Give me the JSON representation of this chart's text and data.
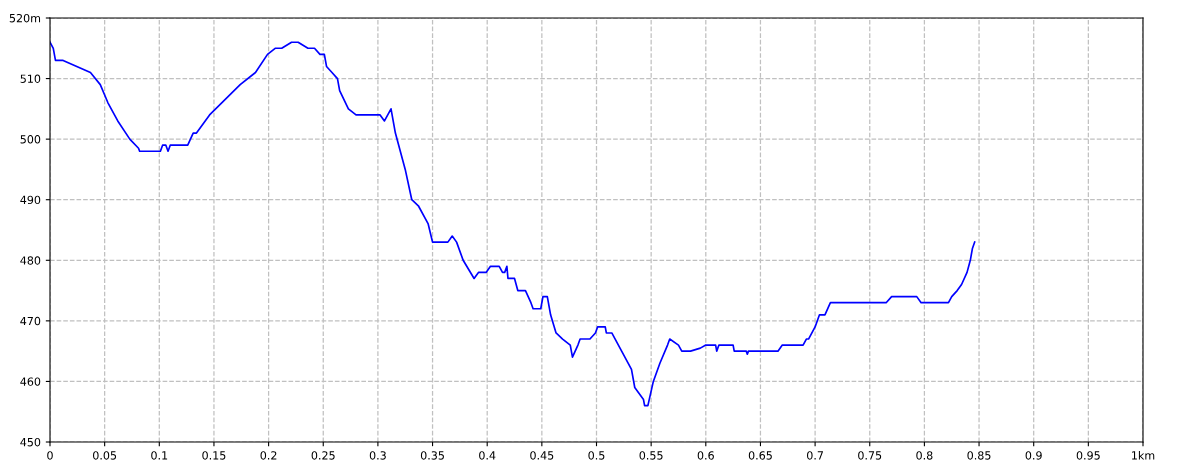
{
  "chart_data": {
    "type": "line",
    "xlim": [
      0,
      1
    ],
    "ylim": [
      450,
      520
    ],
    "xticks": [
      0,
      0.05,
      0.1,
      0.15,
      0.2,
      0.25,
      0.3,
      0.35,
      0.4,
      0.45,
      0.5,
      0.55,
      0.6,
      0.65,
      0.7,
      0.75,
      0.8,
      0.85,
      0.9,
      0.95,
      {
        "value": 1,
        "label": "1km"
      }
    ],
    "yticks": [
      450,
      460,
      470,
      480,
      490,
      500,
      510,
      {
        "value": 520,
        "label": "520m"
      }
    ],
    "grid": true,
    "marker": "none",
    "line_style": "solid",
    "series": [
      {
        "color": "#0000ff",
        "x": [
          0,
          0.003,
          0.005,
          0.012,
          0.037,
          0.046,
          0.053,
          0.062,
          0.073,
          0.081,
          0.082,
          0.101,
          0.103,
          0.106,
          0.108,
          0.11,
          0.126,
          0.131,
          0.134,
          0.146,
          0.174,
          0.188,
          0.199,
          0.206,
          0.212,
          0.221,
          0.227,
          0.236,
          0.242,
          0.247,
          0.251,
          0.253,
          0.258,
          0.263,
          0.265,
          0.273,
          0.28,
          0.302,
          0.306,
          0.312,
          0.316,
          0.325,
          0.331,
          0.337,
          0.346,
          0.35,
          0.364,
          0.368,
          0.372,
          0.378,
          0.388,
          0.392,
          0.395,
          0.399,
          0.403,
          0.411,
          0.414,
          0.416,
          0.418,
          0.419,
          0.425,
          0.428,
          0.435,
          0.44,
          0.442,
          0.449,
          0.451,
          0.455,
          0.458,
          0.463,
          0.469,
          0.476,
          0.478,
          0.483,
          0.485,
          0.494,
          0.499,
          0.501,
          0.508,
          0.509,
          0.514,
          0.523,
          0.532,
          0.535,
          0.543,
          0.544,
          0.547,
          0.552,
          0.558,
          0.565,
          0.567,
          0.575,
          0.578,
          0.586,
          0.595,
          0.6,
          0.609,
          0.61,
          0.612,
          0.625,
          0.626,
          0.637,
          0.638,
          0.639,
          0.666,
          0.67,
          0.689,
          0.692,
          0.694,
          0.7,
          0.704,
          0.709,
          0.714,
          0.765,
          0.77,
          0.793,
          0.797,
          0.822,
          0.825,
          0.83,
          0.834,
          0.839,
          0.842,
          0.844,
          0.846
        ],
        "values": [
          516,
          515,
          513,
          513,
          511,
          509,
          506,
          503,
          500,
          498.5,
          498,
          498,
          499,
          499,
          498,
          499,
          499,
          501,
          501,
          504,
          509,
          511,
          514,
          515,
          515,
          516,
          516,
          515,
          515,
          514,
          514,
          512,
          511,
          510,
          508,
          505,
          504,
          504,
          503,
          505,
          501,
          495,
          490,
          489,
          486,
          483,
          483,
          484,
          483,
          480,
          477,
          478,
          478,
          478,
          479,
          479,
          478,
          478,
          479,
          477,
          477,
          475,
          475,
          473,
          472,
          472,
          474,
          474,
          471,
          468,
          467,
          466,
          464,
          466,
          467,
          467,
          468,
          469,
          469,
          468,
          468,
          465,
          462,
          459,
          457,
          456,
          456,
          460,
          463,
          466,
          467,
          466,
          465,
          465,
          465.5,
          466,
          466,
          465,
          466,
          466,
          465,
          465,
          464.5,
          465,
          465,
          466,
          466,
          467,
          467,
          469,
          471,
          471,
          473,
          473,
          474,
          474,
          473,
          473,
          474,
          475,
          476,
          478,
          480,
          482,
          483
        ]
      }
    ]
  }
}
